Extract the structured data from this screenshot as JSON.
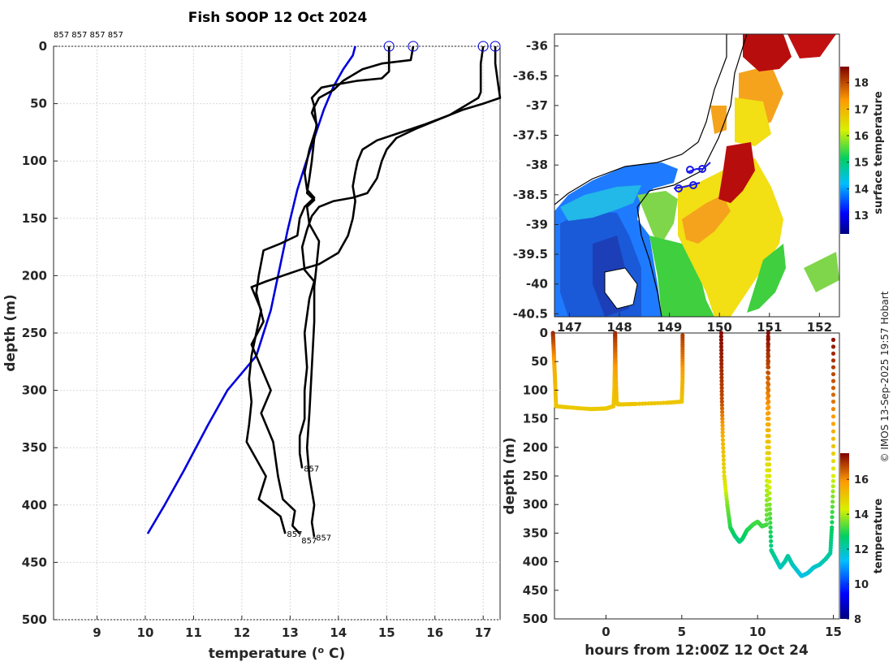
{
  "chart_data": [
    {
      "type": "line",
      "name": "temperature-depth-profiles",
      "title": "Fish SOOP 12 Oct 2024",
      "xlabel": "temperature (",
      "xlabel_sup": "o",
      "xlabel_unit": " C)",
      "ylabel": "depth (m)",
      "xlim": [
        8.1,
        17.35
      ],
      "ylim": [
        0,
        500
      ],
      "y_reversed": true,
      "xticks": [
        9,
        10,
        11,
        12,
        13,
        14,
        15,
        16,
        17
      ],
      "yticks": [
        0,
        50,
        100,
        150,
        200,
        250,
        300,
        350,
        400,
        450,
        500
      ],
      "top_label": "857 857 857 857",
      "grid": true,
      "series": [
        {
          "name": "climatology",
          "color": "#0000dd",
          "points": [
            [
              14.35,
              0
            ],
            [
              14.3,
              8
            ],
            [
              14.1,
              20
            ],
            [
              13.9,
              35
            ],
            [
              13.7,
              55
            ],
            [
              13.5,
              80
            ],
            [
              13.3,
              105
            ],
            [
              13.15,
              125
            ],
            [
              12.95,
              160
            ],
            [
              12.8,
              190
            ],
            [
              12.6,
              230
            ],
            [
              12.3,
              270
            ],
            [
              11.7,
              300
            ],
            [
              11.3,
              330
            ],
            [
              10.8,
              370
            ],
            [
              10.4,
              400
            ],
            [
              10.05,
              425
            ]
          ]
        },
        {
          "name": "cast-1",
          "color": "#000000",
          "points": [
            [
              15.05,
              0
            ],
            [
              15.05,
              22
            ],
            [
              14.9,
              28
            ],
            [
              14.4,
              30
            ],
            [
              14.0,
              33
            ],
            [
              13.65,
              36
            ],
            [
              13.45,
              45
            ],
            [
              13.5,
              52
            ],
            [
              13.45,
              58
            ],
            [
              13.55,
              68
            ],
            [
              13.5,
              80
            ],
            [
              13.45,
              100
            ],
            [
              13.4,
              115
            ],
            [
              13.35,
              128
            ],
            [
              13.5,
              134
            ],
            [
              13.35,
              140
            ],
            [
              13.4,
              155
            ],
            [
              13.6,
              170
            ],
            [
              13.55,
              190
            ],
            [
              13.5,
              210
            ],
            [
              13.5,
              240
            ],
            [
              13.45,
              280
            ],
            [
              13.4,
              320
            ],
            [
              13.35,
              350
            ],
            [
              13.4,
              375
            ],
            [
              13.5,
              400
            ],
            [
              13.45,
              415
            ],
            [
              13.5,
              428
            ]
          ]
        },
        {
          "name": "cast-2",
          "color": "#000000",
          "points": [
            [
              15.55,
              0
            ],
            [
              15.5,
              12
            ],
            [
              14.9,
              15
            ],
            [
              14.5,
              20
            ],
            [
              14.1,
              30
            ],
            [
              13.9,
              38
            ],
            [
              13.6,
              45
            ],
            [
              13.5,
              53
            ],
            [
              13.55,
              70
            ],
            [
              13.4,
              90
            ],
            [
              13.3,
              110
            ],
            [
              13.35,
              125
            ],
            [
              13.5,
              132
            ],
            [
              13.3,
              140
            ],
            [
              13.2,
              150
            ],
            [
              13.15,
              165
            ],
            [
              12.8,
              172
            ],
            [
              12.45,
              178
            ],
            [
              12.35,
              200
            ],
            [
              12.3,
              215
            ],
            [
              12.45,
              240
            ],
            [
              12.2,
              260
            ],
            [
              12.45,
              285
            ],
            [
              12.6,
              300
            ],
            [
              12.4,
              320
            ],
            [
              12.65,
              345
            ],
            [
              12.75,
              375
            ],
            [
              12.85,
              395
            ],
            [
              13.1,
              405
            ],
            [
              13.05,
              418
            ],
            [
              13.2,
              425
            ]
          ]
        },
        {
          "name": "cast-3",
          "color": "#000000",
          "points": [
            [
              17.0,
              0
            ],
            [
              16.95,
              15
            ],
            [
              16.95,
              40
            ],
            [
              16.9,
              45
            ],
            [
              16.3,
              60
            ],
            [
              15.6,
              72
            ],
            [
              15.2,
              80
            ],
            [
              15.0,
              90
            ],
            [
              14.9,
              100
            ],
            [
              14.8,
              115
            ],
            [
              14.6,
              128
            ],
            [
              14.3,
              132
            ],
            [
              13.9,
              135
            ],
            [
              13.6,
              140
            ],
            [
              13.45,
              148
            ],
            [
              13.35,
              160
            ],
            [
              13.25,
              175
            ],
            [
              13.3,
              195
            ],
            [
              13.5,
              205
            ],
            [
              13.4,
              220
            ],
            [
              13.3,
              250
            ],
            [
              13.35,
              280
            ],
            [
              13.3,
              300
            ],
            [
              13.3,
              325
            ],
            [
              13.2,
              340
            ],
            [
              13.2,
              355
            ],
            [
              13.25,
              368
            ]
          ]
        },
        {
          "name": "cast-4",
          "color": "#000000",
          "points": [
            [
              17.25,
              0
            ],
            [
              17.25,
              15
            ],
            [
              17.3,
              30
            ],
            [
              17.35,
              45
            ],
            [
              17.0,
              50
            ],
            [
              16.6,
              55
            ],
            [
              16.3,
              60
            ],
            [
              15.8,
              68
            ],
            [
              15.3,
              75
            ],
            [
              14.8,
              82
            ],
            [
              14.5,
              90
            ],
            [
              14.4,
              100
            ],
            [
              14.35,
              110
            ],
            [
              14.3,
              122
            ],
            [
              14.35,
              135
            ],
            [
              14.3,
              150
            ],
            [
              14.2,
              165
            ],
            [
              14.0,
              180
            ],
            [
              13.6,
              190
            ],
            [
              13.2,
              195
            ],
            [
              12.5,
              205
            ],
            [
              12.2,
              210
            ],
            [
              12.4,
              230
            ],
            [
              12.3,
              250
            ],
            [
              12.2,
              270
            ],
            [
              12.15,
              290
            ],
            [
              12.2,
              310
            ],
            [
              12.15,
              330
            ],
            [
              12.1,
              345
            ],
            [
              12.3,
              360
            ],
            [
              12.5,
              375
            ],
            [
              12.35,
              395
            ],
            [
              12.8,
              410
            ],
            [
              12.9,
              425
            ]
          ]
        }
      ],
      "cast_labels": [
        "857",
        "857",
        "857",
        "857"
      ]
    },
    {
      "type": "heatmap",
      "name": "sst-map",
      "colorbar_label": "surface temperature",
      "colorbar_range": [
        12.3,
        18.6
      ],
      "colorbar_ticks": [
        13,
        14,
        15,
        16,
        17,
        18
      ],
      "xticks": [
        "147",
        "148",
        "149",
        "150",
        "151",
        "152"
      ],
      "yticks": [
        "-36",
        "-36.5",
        "-37",
        "-37.5",
        "-38",
        "-38.5",
        "-39",
        "-39.5",
        "-40",
        "-40.5"
      ],
      "xlim": [
        146.7,
        152.4
      ],
      "ylim": [
        -40.55,
        -35.8
      ]
    },
    {
      "type": "scatter",
      "name": "depth-time-section",
      "xlabel": "hours from 12:00Z 12 Oct 24",
      "ylabel": "depth (m)",
      "xlim": [
        -3.4,
        15.4
      ],
      "ylim": [
        0,
        500
      ],
      "y_reversed": true,
      "xticks": [
        0,
        5,
        10,
        15
      ],
      "yticks": [
        0,
        50,
        100,
        150,
        200,
        250,
        300,
        350,
        400,
        450,
        500
      ],
      "colorbar_label": "temperature",
      "colorbar_range": [
        8,
        17.5
      ],
      "colorbar_ticks": [
        8,
        10,
        12,
        14,
        16
      ],
      "tracks": [
        {
          "points": [
            [
              -3.5,
              0,
              17
            ],
            [
              -3.45,
              30,
              16
            ],
            [
              -3.4,
              60,
              15
            ],
            [
              -3.35,
              90,
              14.8
            ],
            [
              -3.3,
              128,
              14.5
            ],
            [
              -2.5,
              130,
              14.4
            ],
            [
              -1,
              133,
              14.4
            ],
            [
              0,
              132,
              14.4
            ],
            [
              0.5,
              128,
              14.5
            ],
            [
              0.55,
              100,
              14.6
            ],
            [
              0.58,
              60,
              15
            ],
            [
              0.6,
              30,
              16
            ],
            [
              0.6,
              0,
              17
            ]
          ]
        },
        {
          "points": [
            [
              0.6,
              0,
              17
            ],
            [
              0.62,
              40,
              16
            ],
            [
              0.65,
              80,
              15
            ],
            [
              0.7,
              120,
              14.6
            ],
            [
              0.8,
              125,
              14.5
            ],
            [
              2,
              124,
              14.5
            ],
            [
              4,
              122,
              14.5
            ],
            [
              5,
              120,
              14.5
            ],
            [
              5.05,
              80,
              15
            ],
            [
              5.05,
              40,
              16
            ],
            [
              5.05,
              0,
              16.8
            ]
          ]
        },
        {
          "points": [
            [
              7.6,
              0,
              17.4
            ],
            [
              7.62,
              60,
              17
            ],
            [
              7.65,
              120,
              16.5
            ],
            [
              7.7,
              180,
              15
            ],
            [
              7.8,
              250,
              14
            ],
            [
              8.0,
              300,
              13
            ],
            [
              8.2,
              340,
              12.5
            ],
            [
              8.5,
              355,
              12.2
            ],
            [
              8.8,
              365,
              12
            ],
            [
              9.0,
              360,
              12.2
            ],
            [
              9.3,
              345,
              12.4
            ],
            [
              9.7,
              335,
              12.6
            ],
            [
              10.0,
              330,
              12.7
            ],
            [
              10.3,
              338,
              12.6
            ],
            [
              10.6,
              335,
              12.7
            ],
            [
              10.62,
              250,
              13.5
            ],
            [
              10.65,
              150,
              15
            ],
            [
              10.68,
              60,
              16.5
            ],
            [
              10.7,
              0,
              17.4
            ]
          ]
        },
        {
          "points": [
            [
              10.7,
              0,
              17.4
            ],
            [
              10.72,
              100,
              16
            ],
            [
              10.75,
              200,
              14.5
            ],
            [
              10.8,
              300,
              13
            ],
            [
              10.9,
              380,
              12
            ],
            [
              11.2,
              395,
              11.8
            ],
            [
              11.5,
              410,
              11.5
            ],
            [
              11.8,
              400,
              11.7
            ],
            [
              12.0,
              390,
              11.8
            ],
            [
              12.3,
              405,
              11.6
            ],
            [
              12.6,
              415,
              11.4
            ],
            [
              12.9,
              425,
              11.2
            ],
            [
              13.3,
              420,
              11.3
            ],
            [
              13.7,
              410,
              11.4
            ],
            [
              14.1,
              405,
              11.5
            ],
            [
              14.5,
              395,
              11.7
            ],
            [
              14.8,
              385,
              11.8
            ],
            [
              14.9,
              340,
              12.3
            ],
            [
              15.0,
              250,
              13.5
            ],
            [
              15.0,
              120,
              16
            ],
            [
              15.0,
              0,
              17.4
            ]
          ]
        }
      ]
    }
  ],
  "watermark": "© IMOS 13-Sep-2025 19:57 Hobart"
}
